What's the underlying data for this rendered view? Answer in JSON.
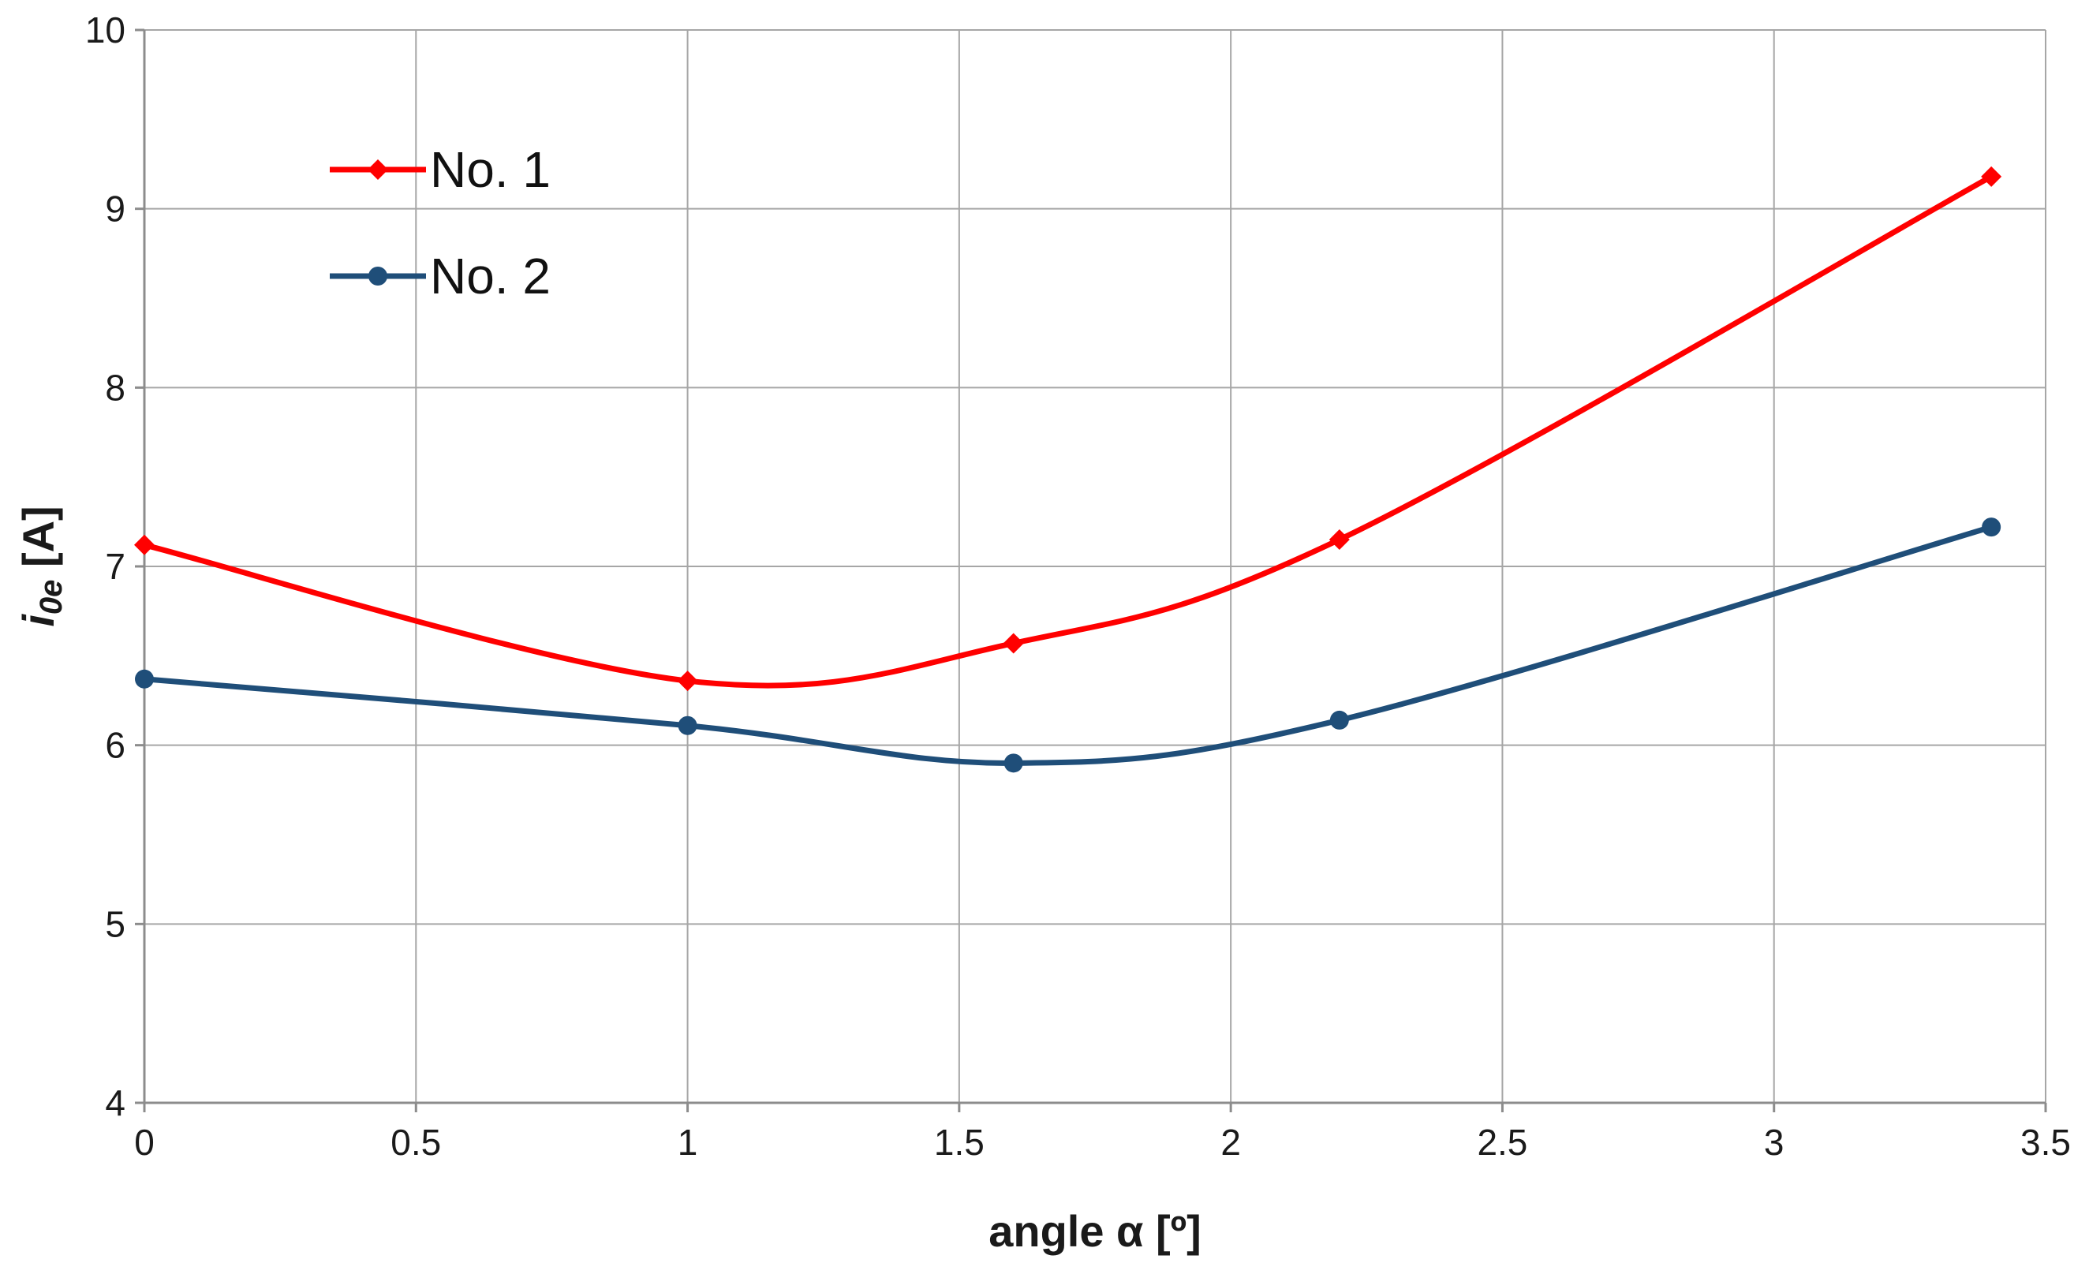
{
  "chart_data": {
    "type": "line",
    "title": "",
    "xlabel": "angle α [º]",
    "ylabel_main": "i",
    "ylabel_sub": "0e",
    "ylabel_unit": " [A]",
    "xlim": [
      0,
      3.5
    ],
    "ylim": [
      4,
      10
    ],
    "x_ticks": [
      0,
      0.5,
      1,
      1.5,
      2,
      2.5,
      3,
      3.5
    ],
    "x_tick_labels": [
      "0",
      "0.5",
      "1",
      "1.5",
      "2",
      "2.5",
      "3",
      "3.5"
    ],
    "y_ticks": [
      4,
      5,
      6,
      7,
      8,
      9,
      10
    ],
    "y_tick_labels": [
      "4",
      "5",
      "6",
      "7",
      "8",
      "9",
      "10"
    ],
    "grid": true,
    "legend_position": "top-left",
    "smooth": true,
    "x": [
      0,
      1,
      1.6,
      2.2,
      3.4
    ],
    "series": [
      {
        "name": "No. 1",
        "values": [
          7.12,
          6.36,
          6.57,
          7.15,
          9.18
        ],
        "color": "#ff0000",
        "marker": "diamond"
      },
      {
        "name": "No. 2",
        "values": [
          6.37,
          6.11,
          5.9,
          6.14,
          7.22
        ],
        "color": "#1f4e79",
        "marker": "circle"
      }
    ],
    "gridline_color": "#a6a6a6",
    "axis_color": "#8c8c8c"
  }
}
